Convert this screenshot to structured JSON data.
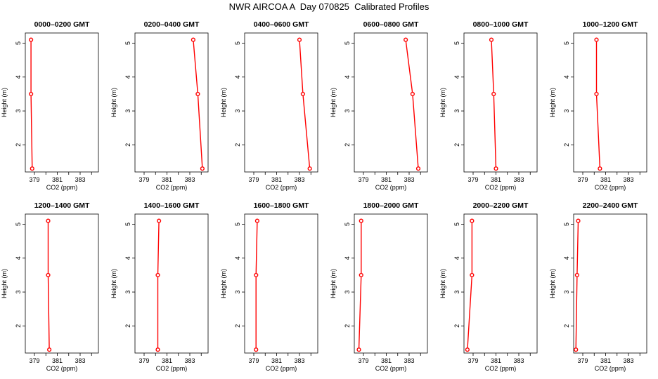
{
  "title": "NWR AIRCOA A  Day 070825  Calibrated Profiles",
  "colors": {
    "profile": "#ff0000",
    "axes": "#000000"
  },
  "chart_data": [
    {
      "type": "line",
      "title": "0000–0200 GMT",
      "xlabel": "CO2 (ppm)",
      "ylabel": "Height (m)",
      "xlim": [
        378.2,
        384.6
      ],
      "ylim": [
        1.2,
        5.3
      ],
      "xticks": [
        "379",
        "381",
        "383"
      ],
      "yticks": [
        "2",
        "3",
        "4",
        "5"
      ],
      "x": [
        378.7,
        378.7,
        378.8
      ],
      "y": [
        5.1,
        3.5,
        1.3
      ]
    },
    {
      "type": "line",
      "title": "0200–0400 GMT",
      "xlabel": "CO2 (ppm)",
      "ylabel": "Height (m)",
      "xlim": [
        378.2,
        384.6
      ],
      "ylim": [
        1.2,
        5.3
      ],
      "xticks": [
        "379",
        "381",
        "383"
      ],
      "yticks": [
        "2",
        "3",
        "4",
        "5"
      ],
      "x": [
        383.3,
        383.7,
        384.1
      ],
      "y": [
        5.1,
        3.5,
        1.3
      ]
    },
    {
      "type": "line",
      "title": "0400–0600 GMT",
      "xlabel": "CO2 (ppm)",
      "ylabel": "Height (m)",
      "xlim": [
        378.2,
        384.6
      ],
      "ylim": [
        1.2,
        5.3
      ],
      "xticks": [
        "379",
        "381",
        "383"
      ],
      "yticks": [
        "2",
        "3",
        "4",
        "5"
      ],
      "x": [
        383.0,
        383.3,
        383.9
      ],
      "y": [
        5.1,
        3.5,
        1.3
      ]
    },
    {
      "type": "line",
      "title": "0600–0800 GMT",
      "xlabel": "CO2 (ppm)",
      "ylabel": "Height (m)",
      "xlim": [
        378.2,
        384.6
      ],
      "ylim": [
        1.2,
        5.3
      ],
      "xticks": [
        "379",
        "381",
        "383"
      ],
      "yticks": [
        "2",
        "3",
        "4",
        "5"
      ],
      "x": [
        382.7,
        383.3,
        383.8
      ],
      "y": [
        5.1,
        3.5,
        1.3
      ]
    },
    {
      "type": "line",
      "title": "0800–1000 GMT",
      "xlabel": "CO2 (ppm)",
      "ylabel": "Height (m)",
      "xlim": [
        378.2,
        384.6
      ],
      "ylim": [
        1.2,
        5.3
      ],
      "xticks": [
        "379",
        "381",
        "383"
      ],
      "yticks": [
        "2",
        "3",
        "4",
        "5"
      ],
      "x": [
        380.6,
        380.8,
        381.0
      ],
      "y": [
        5.1,
        3.5,
        1.3
      ]
    },
    {
      "type": "line",
      "title": "1000–1200 GMT",
      "xlabel": "CO2 (ppm)",
      "ylabel": "Height (m)",
      "xlim": [
        378.2,
        384.6
      ],
      "ylim": [
        1.2,
        5.3
      ],
      "xticks": [
        "379",
        "381",
        "383"
      ],
      "yticks": [
        "2",
        "3",
        "4",
        "5"
      ],
      "x": [
        380.2,
        380.2,
        380.5
      ],
      "y": [
        5.1,
        3.5,
        1.3
      ]
    },
    {
      "type": "line",
      "title": "1200–1400 GMT",
      "xlabel": "CO2 (ppm)",
      "ylabel": "Height (m)",
      "xlim": [
        378.2,
        384.6
      ],
      "ylim": [
        1.2,
        5.3
      ],
      "xticks": [
        "379",
        "381",
        "383"
      ],
      "yticks": [
        "2",
        "3",
        "4",
        "5"
      ],
      "x": [
        380.2,
        380.2,
        380.3
      ],
      "y": [
        5.1,
        3.5,
        1.3
      ]
    },
    {
      "type": "line",
      "title": "1400–1600 GMT",
      "xlabel": "CO2 (ppm)",
      "ylabel": "Height (m)",
      "xlim": [
        378.2,
        384.6
      ],
      "ylim": [
        1.2,
        5.3
      ],
      "xticks": [
        "379",
        "381",
        "383"
      ],
      "yticks": [
        "2",
        "3",
        "4",
        "5"
      ],
      "x": [
        380.3,
        380.2,
        380.2
      ],
      "y": [
        5.1,
        3.5,
        1.3
      ]
    },
    {
      "type": "line",
      "title": "1600–1800 GMT",
      "xlabel": "CO2 (ppm)",
      "ylabel": "Height (m)",
      "xlim": [
        378.2,
        384.6
      ],
      "ylim": [
        1.2,
        5.3
      ],
      "xticks": [
        "379",
        "381",
        "383"
      ],
      "yticks": [
        "2",
        "3",
        "4",
        "5"
      ],
      "x": [
        379.3,
        379.2,
        379.2
      ],
      "y": [
        5.1,
        3.5,
        1.3
      ]
    },
    {
      "type": "line",
      "title": "1800–2000 GMT",
      "xlabel": "CO2 (ppm)",
      "ylabel": "Height (m)",
      "xlim": [
        378.2,
        384.6
      ],
      "ylim": [
        1.2,
        5.3
      ],
      "xticks": [
        "379",
        "381",
        "383"
      ],
      "yticks": [
        "2",
        "3",
        "4",
        "5"
      ],
      "x": [
        378.8,
        378.8,
        378.6
      ],
      "y": [
        5.1,
        3.5,
        1.3
      ]
    },
    {
      "type": "line",
      "title": "2000–2200 GMT",
      "xlabel": "CO2 (ppm)",
      "ylabel": "Height (m)",
      "xlim": [
        378.2,
        384.6
      ],
      "ylim": [
        1.2,
        5.3
      ],
      "xticks": [
        "379",
        "381",
        "383"
      ],
      "yticks": [
        "2",
        "3",
        "4",
        "5"
      ],
      "x": [
        378.9,
        378.9,
        378.5
      ],
      "y": [
        5.1,
        3.5,
        1.3
      ]
    },
    {
      "type": "line",
      "title": "2200–2400 GMT",
      "xlabel": "CO2 (ppm)",
      "ylabel": "Height (m)",
      "xlim": [
        378.2,
        384.6
      ],
      "ylim": [
        1.2,
        5.3
      ],
      "xticks": [
        "379",
        "381",
        "383"
      ],
      "yticks": [
        "2",
        "3",
        "4",
        "5"
      ],
      "x": [
        378.6,
        378.5,
        378.4
      ],
      "y": [
        5.1,
        3.5,
        1.3
      ]
    }
  ]
}
